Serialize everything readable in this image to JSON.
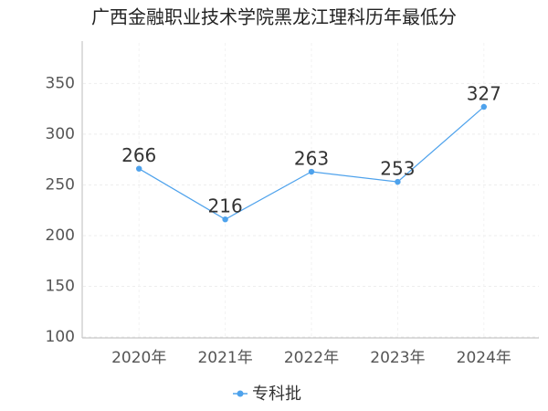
{
  "chart_data": {
    "type": "line",
    "title": "广西金融职业技术学院黑龙江理科历年最低分",
    "categories": [
      "2020年",
      "2021年",
      "2022年",
      "2023年",
      "2024年"
    ],
    "series": [
      {
        "name": "专科批",
        "color": "#4ea2ec",
        "values": [
          266,
          216,
          263,
          253,
          327
        ]
      }
    ],
    "ylim": [
      100,
      390
    ],
    "yticks": [
      100,
      150,
      200,
      250,
      300,
      350
    ],
    "grid": true
  }
}
